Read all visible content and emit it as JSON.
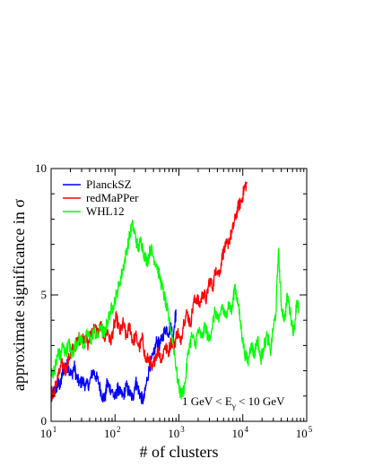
{
  "chart_data": {
    "type": "line",
    "title": "",
    "xlabel": "# of clusters",
    "ylabel": "approximate significance in σ",
    "x_scale": "log",
    "xlim": [
      10,
      100000
    ],
    "ylim": [
      0,
      10
    ],
    "x_ticks": [
      {
        "value": 10,
        "base": "10",
        "exp": "1"
      },
      {
        "value": 100,
        "base": "10",
        "exp": "2"
      },
      {
        "value": 1000,
        "base": "10",
        "exp": "3"
      },
      {
        "value": 10000,
        "base": "10",
        "exp": "4"
      },
      {
        "value": 100000,
        "base": "10",
        "exp": "5"
      }
    ],
    "y_ticks": [
      {
        "value": 0,
        "label": "0"
      },
      {
        "value": 5,
        "label": "5"
      },
      {
        "value": 10,
        "label": "10"
      }
    ],
    "grid": false,
    "legend_position": "top-left",
    "annotation": {
      "parts": [
        "1 GeV < E",
        "γ",
        " < 10 GeV"
      ]
    },
    "series": [
      {
        "name": "PlanckSZ",
        "color": "#0000ff",
        "x": [
          10,
          11,
          12,
          13,
          14,
          15,
          17,
          19,
          21,
          23,
          25,
          28,
          31,
          35,
          40,
          45,
          50,
          56,
          63,
          70,
          75,
          80,
          90,
          100,
          110,
          120,
          135,
          150,
          170,
          190,
          210,
          230,
          250,
          280,
          310,
          350,
          400,
          450,
          500,
          560,
          630,
          700,
          750,
          800,
          870,
          900
        ],
        "y": [
          0.8,
          1.2,
          1.3,
          1.5,
          1.4,
          1.9,
          2.3,
          2.1,
          1.8,
          2.2,
          1.7,
          1.5,
          1.6,
          1.4,
          1.5,
          2.0,
          1.8,
          1.5,
          1.0,
          0.9,
          1.5,
          1.4,
          1.2,
          0.9,
          1.3,
          1.1,
          1.0,
          1.4,
          1.1,
          0.9,
          1.6,
          1.3,
          1.0,
          0.8,
          1.5,
          2.2,
          2.6,
          3.2,
          3.0,
          3.4,
          3.7,
          3.5,
          3.9,
          3.2,
          4.1,
          4.2
        ]
      },
      {
        "name": "redMaPPer",
        "color": "#ff0000",
        "x": [
          10,
          11,
          12,
          13,
          15,
          17,
          19,
          21,
          24,
          27,
          30,
          34,
          38,
          43,
          48,
          54,
          60,
          68,
          76,
          85,
          95,
          105,
          120,
          135,
          150,
          170,
          190,
          210,
          240,
          270,
          300,
          340,
          380,
          430,
          480,
          540,
          600,
          680,
          760,
          850,
          950,
          1050,
          1200,
          1350,
          1500,
          1700,
          1900,
          2100,
          2400,
          2700,
          3000,
          3400,
          3800,
          4300,
          4800,
          5400,
          6000,
          6800,
          7600,
          8500,
          9500,
          10500,
          11500
        ],
        "y": [
          1.2,
          1.0,
          1.5,
          1.8,
          2.3,
          2.0,
          2.5,
          2.8,
          3.0,
          3.3,
          3.2,
          3.4,
          3.0,
          3.6,
          3.7,
          3.5,
          3.8,
          3.3,
          3.6,
          3.1,
          3.7,
          4.1,
          3.5,
          3.9,
          3.3,
          3.8,
          3.1,
          3.4,
          2.9,
          3.3,
          2.4,
          2.5,
          2.0,
          2.6,
          2.8,
          2.4,
          3.0,
          2.7,
          3.2,
          3.0,
          3.6,
          3.1,
          4.0,
          4.3,
          3.8,
          4.7,
          4.9,
          4.6,
          5.1,
          4.8,
          5.6,
          5.3,
          6.1,
          5.8,
          6.6,
          6.9,
          7.1,
          7.5,
          8.0,
          8.5,
          8.7,
          9.2,
          9.4
        ]
      },
      {
        "name": "WHL12",
        "color": "#00ff00",
        "x": [
          10,
          11,
          12,
          13,
          14,
          15,
          17,
          19,
          21,
          23,
          26,
          29,
          33,
          37,
          42,
          47,
          53,
          60,
          67,
          75,
          84,
          94,
          105,
          118,
          132,
          148,
          165,
          185,
          205,
          230,
          255,
          285,
          320,
          360,
          400,
          450,
          500,
          560,
          630,
          700,
          780,
          870,
          970,
          1100,
          1250,
          1400,
          1600,
          1800,
          2000,
          2300,
          2600,
          2900,
          3300,
          3700,
          4200,
          4700,
          5300,
          6000,
          6700,
          7500,
          8500,
          9500,
          10500,
          12000,
          13500,
          15000,
          17000,
          19000,
          21000,
          24000,
          27000,
          30000,
          33000,
          36000,
          40000,
          45000,
          50000,
          56000,
          63000,
          70000,
          75000
        ],
        "y": [
          1.8,
          2.0,
          2.3,
          2.8,
          2.5,
          3.0,
          2.7,
          3.1,
          2.6,
          2.9,
          3.2,
          3.3,
          3.0,
          3.5,
          3.2,
          3.6,
          3.3,
          3.8,
          3.4,
          3.9,
          4.3,
          4.6,
          5.0,
          5.5,
          6.0,
          6.6,
          7.2,
          7.8,
          7.4,
          6.8,
          7.2,
          6.6,
          6.3,
          6.9,
          6.5,
          6.2,
          5.7,
          5.2,
          4.6,
          4.0,
          3.4,
          2.5,
          1.5,
          1.0,
          1.5,
          2.8,
          3.4,
          3.0,
          3.6,
          3.3,
          3.8,
          3.2,
          3.7,
          4.4,
          3.9,
          4.6,
          4.1,
          4.7,
          4.3,
          5.4,
          4.6,
          3.6,
          2.8,
          2.3,
          3.1,
          2.6,
          3.3,
          2.4,
          2.9,
          3.4,
          2.7,
          3.7,
          4.3,
          6.8,
          4.6,
          4.0,
          5.0,
          4.2,
          3.5,
          4.8,
          4.4
        ]
      }
    ]
  }
}
